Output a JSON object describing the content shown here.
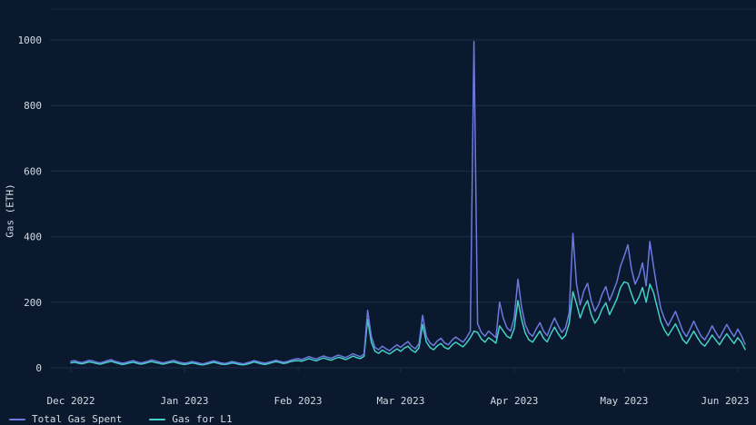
{
  "page": {
    "background_color": "#0a192e",
    "text_color": "#d3dbe5",
    "gridline_color": "#1c2e4a"
  },
  "chart_data": {
    "type": "line",
    "title": "",
    "xlabel": "",
    "ylabel": "Gas (ETH)",
    "ylim": [
      0,
      1000
    ],
    "y_ticks": [
      0,
      200,
      400,
      600,
      800,
      1000
    ],
    "x_tick_labels": [
      "Dec 2022",
      "Jan 2023",
      "Feb 2023",
      "Mar 2023",
      "Apr 2023",
      "May 2023",
      "Jun 2023"
    ],
    "x_tick_indices": [
      0,
      31,
      62,
      90,
      121,
      151,
      182
    ],
    "grid": true,
    "legend_position": "bottom-left",
    "series": [
      {
        "name": "Total Gas Spent",
        "color": "#6c7ae0",
        "values": [
          20,
          22,
          18,
          16,
          19,
          23,
          21,
          17,
          15,
          18,
          22,
          25,
          20,
          17,
          14,
          16,
          19,
          22,
          18,
          15,
          17,
          20,
          24,
          21,
          18,
          15,
          17,
          20,
          23,
          19,
          16,
          14,
          16,
          19,
          17,
          14,
          12,
          15,
          18,
          21,
          18,
          15,
          13,
          16,
          19,
          17,
          14,
          12,
          15,
          18,
          22,
          19,
          16,
          14,
          17,
          20,
          23,
          20,
          17,
          19,
          23,
          26,
          28,
          25,
          30,
          34,
          30,
          27,
          32,
          36,
          32,
          29,
          34,
          39,
          35,
          31,
          37,
          43,
          38,
          34,
          42,
          175,
          95,
          62,
          55,
          66,
          58,
          52,
          62,
          70,
          62,
          72,
          80,
          66,
          58,
          74,
          160,
          96,
          76,
          68,
          82,
          90,
          76,
          70,
          84,
          94,
          86,
          78,
          92,
          112,
          995,
          135,
          108,
          96,
          112,
          102,
          92,
          200,
          152,
          122,
          112,
          152,
          270,
          185,
          132,
          106,
          96,
          118,
          138,
          112,
          98,
          128,
          152,
          128,
          108,
          122,
          168,
          410,
          255,
          192,
          235,
          258,
          205,
          172,
          192,
          225,
          248,
          205,
          232,
          262,
          310,
          340,
          375,
          300,
          255,
          280,
          320,
          250,
          385,
          310,
          240,
          180,
          150,
          128,
          150,
          172,
          142,
          112,
          95,
          118,
          142,
          118,
          96,
          85,
          105,
          128,
          108,
          90,
          112,
          132,
          112,
          95,
          118,
          98,
          72
        ]
      },
      {
        "name": "Gas for L1",
        "color": "#44d0c7",
        "values": [
          15,
          17,
          14,
          12,
          15,
          18,
          16,
          13,
          11,
          14,
          17,
          20,
          16,
          13,
          10,
          12,
          15,
          17,
          14,
          11,
          13,
          16,
          19,
          16,
          14,
          11,
          13,
          16,
          18,
          15,
          12,
          10,
          12,
          15,
          13,
          10,
          9,
          11,
          14,
          17,
          14,
          11,
          10,
          12,
          15,
          13,
          10,
          9,
          11,
          14,
          18,
          15,
          12,
          10,
          13,
          16,
          19,
          16,
          13,
          15,
          19,
          21,
          22,
          20,
          24,
          28,
          24,
          21,
          26,
          30,
          26,
          23,
          28,
          32,
          29,
          25,
          30,
          36,
          31,
          28,
          35,
          148,
          78,
          50,
          44,
          54,
          47,
          42,
          50,
          58,
          50,
          60,
          66,
          54,
          47,
          61,
          132,
          79,
          62,
          55,
          67,
          74,
          62,
          57,
          69,
          78,
          71,
          64,
          76,
          92,
          112,
          108,
          88,
          78,
          92,
          84,
          75,
          128,
          112,
          96,
          90,
          120,
          205,
          148,
          106,
          85,
          78,
          95,
          112,
          90,
          79,
          104,
          124,
          104,
          88,
          99,
          136,
          232,
          195,
          152,
          185,
          205,
          162,
          136,
          152,
          180,
          198,
          162,
          185,
          210,
          245,
          262,
          258,
          225,
          195,
          215,
          245,
          200,
          255,
          230,
          185,
          140,
          115,
          98,
          116,
          134,
          110,
          86,
          74,
          92,
          112,
          92,
          75,
          66,
          82,
          100,
          85,
          70,
          88,
          104,
          88,
          74,
          92,
          78,
          56
        ]
      }
    ]
  }
}
